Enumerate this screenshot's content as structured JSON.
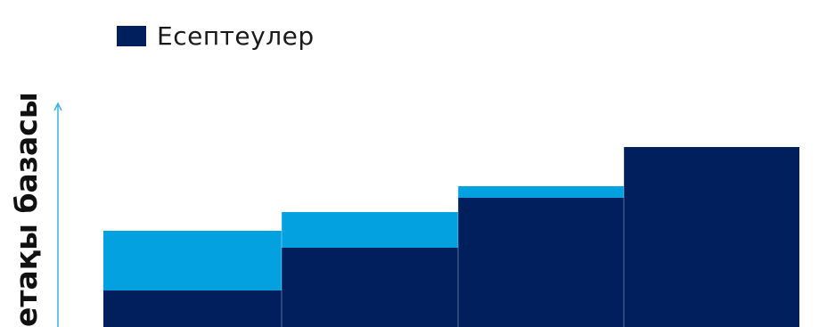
{
  "chart_data": {
    "type": "bar",
    "stacked": true,
    "title": "",
    "xlabel": "",
    "ylabel": "етақы базасы",
    "categories": [
      "",
      "",
      "",
      ""
    ],
    "series": [
      {
        "name": "Есептеулер",
        "color": "#001f5c",
        "values": [
          41,
          89,
          145,
          202
        ]
      },
      {
        "name": "",
        "color": "#04a1e0",
        "values": [
          67,
          40,
          13,
          0
        ]
      }
    ],
    "legend": {
      "position": "top-left",
      "items": [
        "Есептеулер"
      ]
    },
    "axis_color": "#3ab0e6",
    "grid": false
  }
}
